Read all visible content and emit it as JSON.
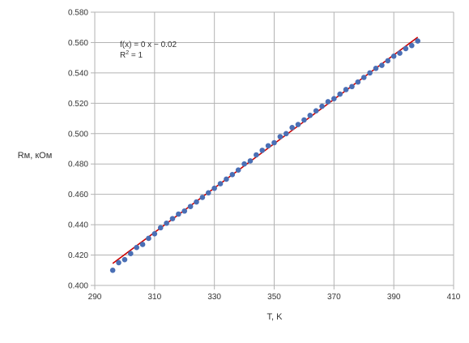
{
  "chart_data": {
    "type": "scatter",
    "xlabel": "T, K",
    "ylabel": "Rм, кОм",
    "xlim": [
      290,
      410
    ],
    "ylim": [
      0.4,
      0.58
    ],
    "x_ticks": [
      "290",
      "310",
      "330",
      "350",
      "370",
      "390",
      "410"
    ],
    "y_ticks": [
      "0.400",
      "0.420",
      "0.440",
      "0.460",
      "0.480",
      "0.500",
      "0.520",
      "0.540",
      "0.560",
      "0.580"
    ],
    "grid": true,
    "legend": "none",
    "annotation": {
      "formula": "f(x) = 0 x − 0.02",
      "r2_label": "R",
      "r2_sup": "2",
      "r2_value": " = 1"
    },
    "trendline": {
      "x": [
        296,
        398
      ],
      "y": [
        0.4145,
        0.5635
      ],
      "color": "#cc0000"
    },
    "series": [
      {
        "color": "#4a6fb5",
        "points": [
          [
            296,
            0.41
          ],
          [
            298,
            0.415
          ],
          [
            300,
            0.417
          ],
          [
            302,
            0.421
          ],
          [
            304,
            0.425
          ],
          [
            306,
            0.427
          ],
          [
            308,
            0.431
          ],
          [
            310,
            0.434
          ],
          [
            312,
            0.438
          ],
          [
            314,
            0.441
          ],
          [
            316,
            0.444
          ],
          [
            318,
            0.447
          ],
          [
            320,
            0.449
          ],
          [
            322,
            0.452
          ],
          [
            324,
            0.455
          ],
          [
            326,
            0.458
          ],
          [
            328,
            0.461
          ],
          [
            330,
            0.464
          ],
          [
            332,
            0.467
          ],
          [
            334,
            0.47
          ],
          [
            336,
            0.473
          ],
          [
            338,
            0.476
          ],
          [
            340,
            0.48
          ],
          [
            342,
            0.482
          ],
          [
            344,
            0.486
          ],
          [
            346,
            0.489
          ],
          [
            348,
            0.492
          ],
          [
            350,
            0.494
          ],
          [
            352,
            0.498
          ],
          [
            354,
            0.5
          ],
          [
            356,
            0.504
          ],
          [
            358,
            0.506
          ],
          [
            360,
            0.509
          ],
          [
            362,
            0.512
          ],
          [
            364,
            0.515
          ],
          [
            366,
            0.518
          ],
          [
            368,
            0.521
          ],
          [
            370,
            0.523
          ],
          [
            372,
            0.526
          ],
          [
            374,
            0.529
          ],
          [
            376,
            0.531
          ],
          [
            378,
            0.534
          ],
          [
            380,
            0.537
          ],
          [
            382,
            0.54
          ],
          [
            384,
            0.543
          ],
          [
            386,
            0.545
          ],
          [
            388,
            0.548
          ],
          [
            390,
            0.551
          ],
          [
            392,
            0.553
          ],
          [
            394,
            0.556
          ],
          [
            396,
            0.558
          ],
          [
            398,
            0.561
          ]
        ]
      }
    ]
  }
}
